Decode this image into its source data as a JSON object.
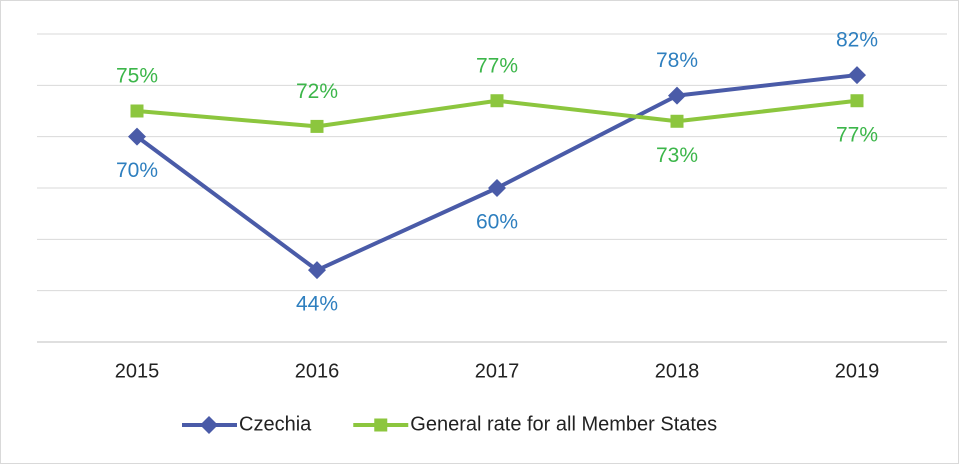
{
  "chart_data": {
    "type": "line",
    "categories": [
      "2015",
      "2016",
      "2017",
      "2018",
      "2019"
    ],
    "series": [
      {
        "name": "Czechia",
        "color": "#4a5ba8",
        "label_color": "#2e7fbf",
        "marker": "diamond",
        "values": [
          70,
          44,
          60,
          78,
          82
        ],
        "value_labels": [
          "70%",
          "44%",
          "60%",
          "78%",
          "82%"
        ]
      },
      {
        "name": "General rate for all Member States",
        "color": "#8cc63e",
        "label_color": "#3cb64a",
        "marker": "square",
        "values": [
          75,
          72,
          77,
          73,
          77
        ],
        "value_labels": [
          "75%",
          "72%",
          "77%",
          "73%",
          "77%"
        ]
      }
    ],
    "ylim": [
      30,
      90
    ],
    "yticks": [
      30,
      40,
      50,
      60,
      70,
      80,
      90
    ],
    "grid": true,
    "legend": "bottom"
  }
}
